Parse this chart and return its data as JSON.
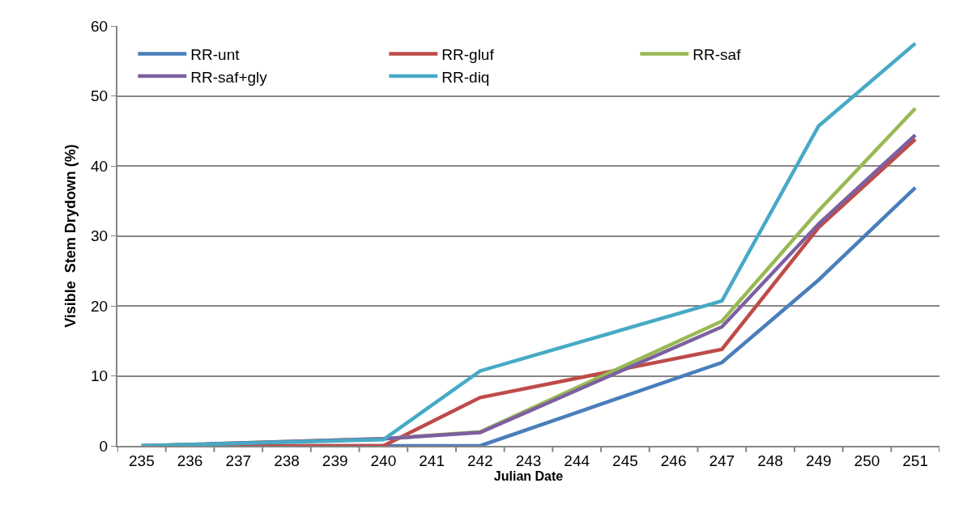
{
  "chart_data": {
    "type": "line",
    "xlabel": "Julian Date",
    "ylabel": "Visible  Stem Drydown (%)",
    "x": [
      235,
      240,
      242,
      247,
      249,
      251
    ],
    "series": [
      {
        "name": "RR-unt",
        "color": "#4a7ebb",
        "values": [
          0,
          0,
          0,
          11.9,
          23.7,
          36.9
        ]
      },
      {
        "name": "RR-gluf",
        "color": "#be4b48",
        "values": [
          0,
          0,
          6.9,
          13.8,
          31.2,
          43.8
        ]
      },
      {
        "name": "RR-saf",
        "color": "#98b954",
        "values": [
          0,
          1,
          2,
          17.8,
          33.6,
          48.2
        ]
      },
      {
        "name": "RR-saf+gly",
        "color": "#7d60a0",
        "values": [
          0,
          1,
          1.9,
          17,
          31.7,
          44.4
        ]
      },
      {
        "name": "RR-diq",
        "color": "#46aac5",
        "values": [
          0,
          0.9,
          10.7,
          20.7,
          45.7,
          57.5
        ]
      }
    ],
    "xlim": [
      234.5,
      251.5
    ],
    "xticks": [
      235,
      236,
      237,
      238,
      239,
      240,
      241,
      242,
      243,
      244,
      245,
      246,
      247,
      248,
      249,
      250,
      251
    ],
    "ylim": [
      0,
      60
    ],
    "yticks": [
      0,
      10,
      20,
      30,
      40,
      50,
      60
    ],
    "grid": "y",
    "legend": "top left",
    "marker": "none",
    "line_style": "solid"
  }
}
